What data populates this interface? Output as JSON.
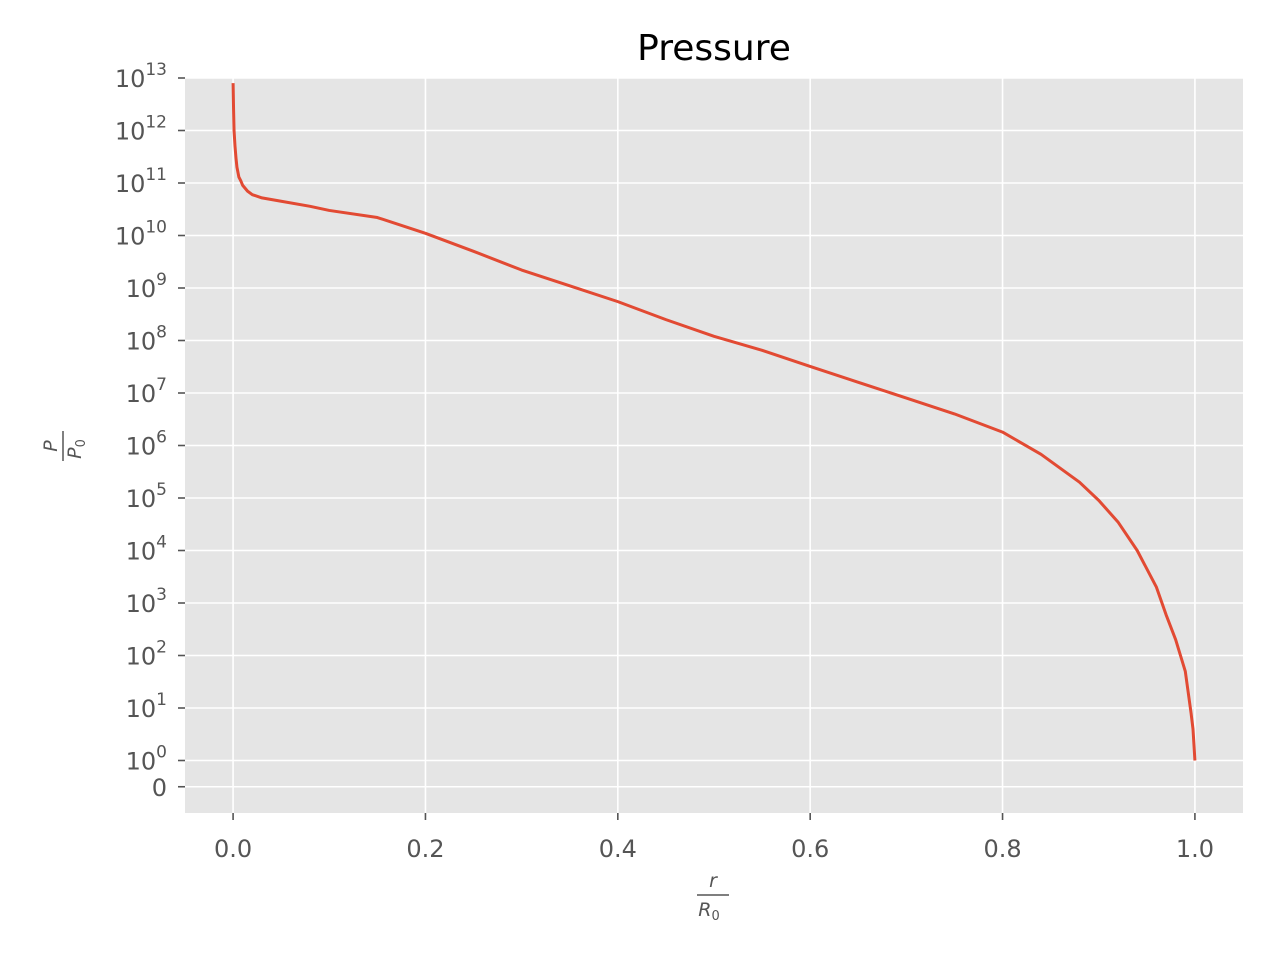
{
  "chart_data": {
    "type": "line",
    "title": "Pressure",
    "xlabel": {
      "numerator": "r",
      "denominator": "R",
      "denominator_sub": "0"
    },
    "ylabel": {
      "numerator": "P",
      "denominator": "P",
      "denominator_sub": "0"
    },
    "yscale": "symlog",
    "xlim": [
      -0.05,
      1.05
    ],
    "ylim": [
      -0.5,
      13.5
    ],
    "x_ticks": [
      {
        "value": 0.0,
        "label": "0.0"
      },
      {
        "value": 0.2,
        "label": "0.2"
      },
      {
        "value": 0.4,
        "label": "0.4"
      },
      {
        "value": 0.6,
        "label": "0.6"
      },
      {
        "value": 0.8,
        "label": "0.8"
      },
      {
        "value": 1.0,
        "label": "1.0"
      }
    ],
    "y_ticks": [
      {
        "value": 0,
        "base": "0",
        "exp": ""
      },
      {
        "value": 1,
        "base": "10",
        "exp": "0"
      },
      {
        "value": 10,
        "base": "10",
        "exp": "1"
      },
      {
        "value": 100,
        "base": "10",
        "exp": "2"
      },
      {
        "value": 1000,
        "base": "10",
        "exp": "3"
      },
      {
        "value": 10000,
        "base": "10",
        "exp": "4"
      },
      {
        "value": 100000,
        "base": "10",
        "exp": "5"
      },
      {
        "value": 1000000,
        "base": "10",
        "exp": "6"
      },
      {
        "value": 10000000,
        "base": "10",
        "exp": "7"
      },
      {
        "value": 100000000,
        "base": "10",
        "exp": "8"
      },
      {
        "value": 1000000000,
        "base": "10",
        "exp": "9"
      },
      {
        "value": 10000000000,
        "base": "10",
        "exp": "10"
      },
      {
        "value": 100000000000,
        "base": "10",
        "exp": "11"
      },
      {
        "value": 1000000000000,
        "base": "10",
        "exp": "12"
      },
      {
        "value": 10000000000000,
        "base": "10",
        "exp": "13"
      }
    ],
    "grid": true,
    "line_color": "#E24A33",
    "background_color": "#E5E5E5",
    "grid_color": "#FFFFFF",
    "series": [
      {
        "x": [
          0.0,
          0.0005,
          0.001,
          0.002,
          0.003,
          0.004,
          0.006,
          0.008,
          0.01,
          0.015,
          0.02,
          0.03,
          0.05,
          0.08,
          0.1,
          0.15,
          0.2,
          0.25,
          0.3,
          0.35,
          0.4,
          0.45,
          0.5,
          0.55,
          0.6,
          0.65,
          0.7,
          0.75,
          0.8,
          0.84,
          0.88,
          0.9,
          0.92,
          0.94,
          0.96,
          0.97,
          0.98,
          0.985,
          0.99,
          0.993,
          0.996,
          0.998,
          0.999,
          1.0
        ],
        "y": [
          8000000000000.0,
          2500000000000.0,
          1000000000000.0,
          500000000000.0,
          300000000000.0,
          200000000000.0,
          130000000000.0,
          110000000000.0,
          90000000000.0,
          70000000000.0,
          60000000000.0,
          52000000000.0,
          45000000000.0,
          36000000000.0,
          30000000000.0,
          22000000000.0,
          11000000000.0,
          5000000000.0,
          2200000000.0,
          1100000000.0,
          550000000.0,
          250000000.0,
          120000000.0,
          65000000.0,
          32000000.0,
          16000000.0,
          8000000.0,
          4000000.0,
          1800000.0,
          680000.0,
          200000.0,
          90000.0,
          35000.0,
          10000.0,
          2000.0,
          600,
          200,
          100,
          50,
          20,
          8,
          4,
          2,
          1
        ]
      }
    ]
  }
}
